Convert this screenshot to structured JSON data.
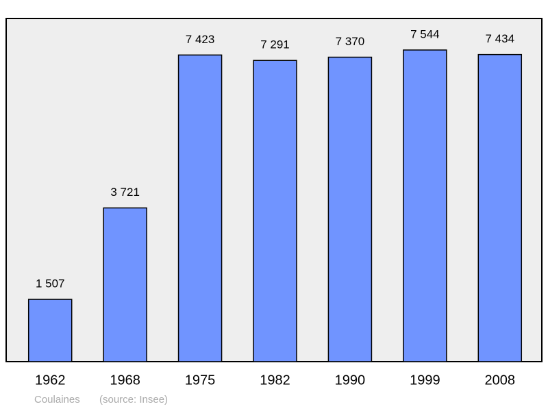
{
  "chart_data": {
    "type": "bar",
    "categories": [
      "1962",
      "1968",
      "1975",
      "1982",
      "1990",
      "1999",
      "2008"
    ],
    "values": [
      1507,
      3721,
      7423,
      7291,
      7370,
      7544,
      7434
    ],
    "value_labels": [
      "1 507",
      "3 721",
      "7 423",
      "7 291",
      "7 370",
      "7 544",
      "7 434"
    ],
    "color": "#7094ff",
    "caption": "Coulaines",
    "source": "(source: Insee)"
  }
}
